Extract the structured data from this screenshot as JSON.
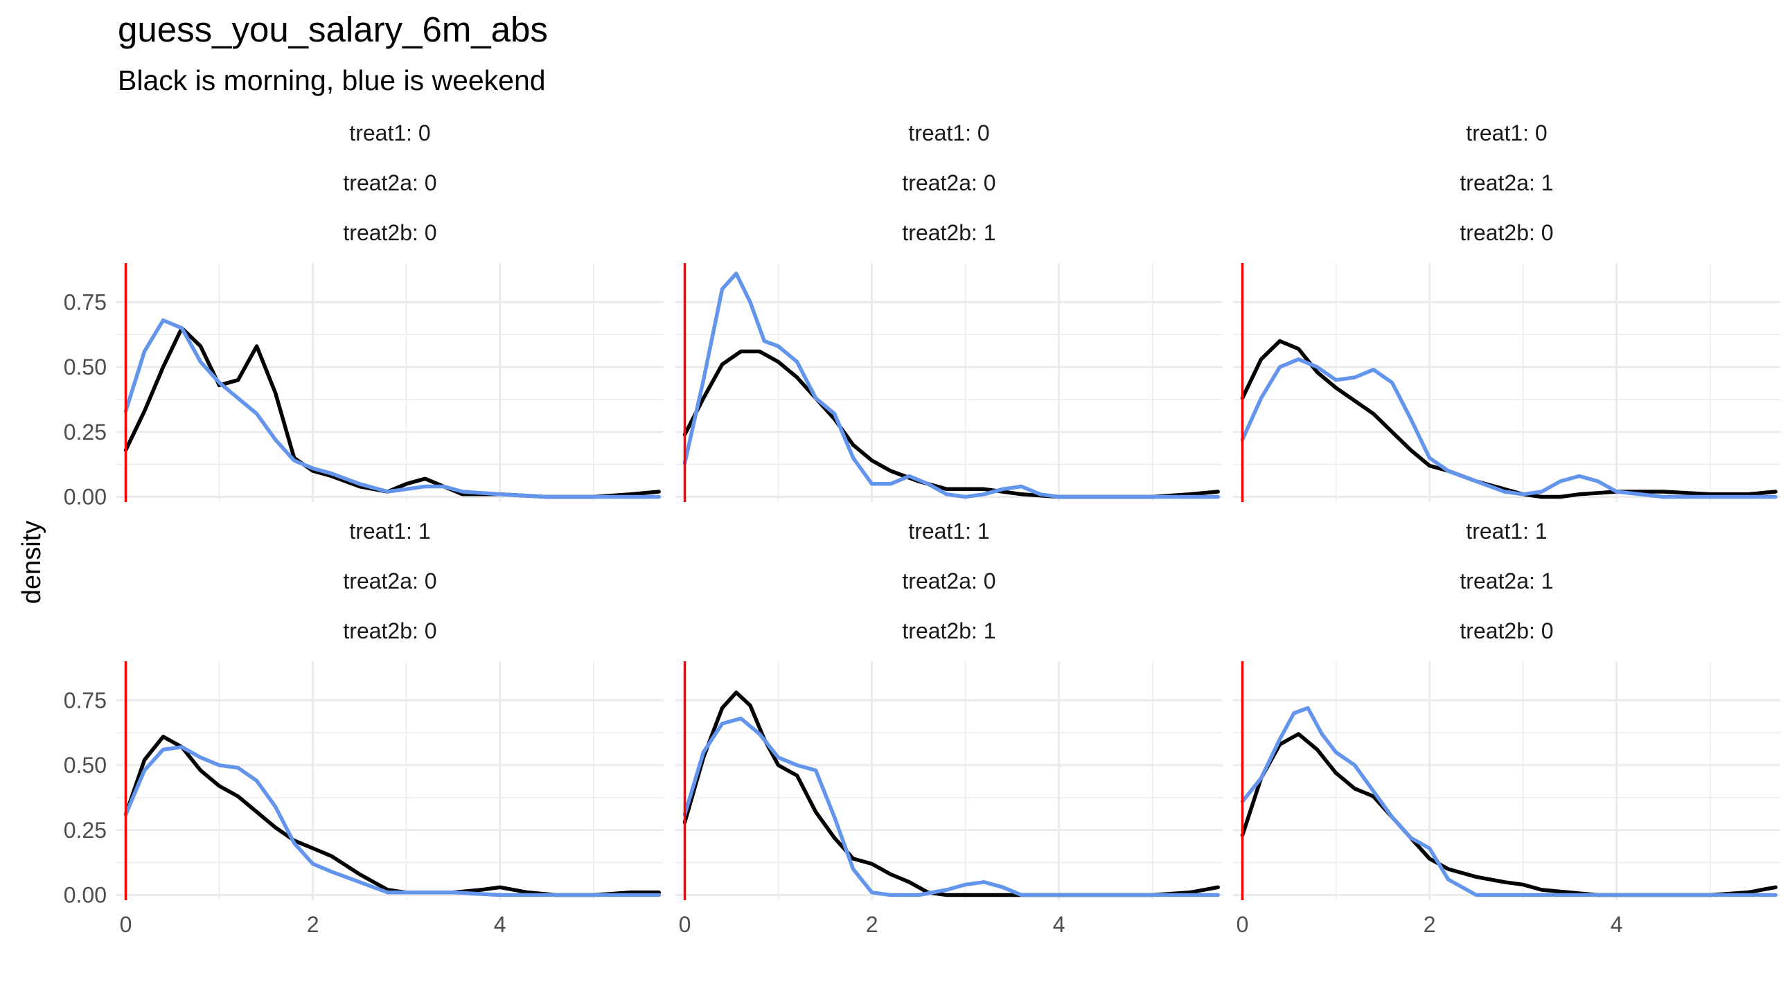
{
  "chart_data": {
    "type": "line",
    "chart_kind": "density",
    "title": "guess_you_salary_6m_abs",
    "subtitle": "Black is morning, blue is weekend",
    "xlabel": "",
    "ylabel": "density",
    "xlim": [
      -0.1,
      5.75
    ],
    "ylim": [
      -0.02,
      0.9
    ],
    "x_ticks": [
      0,
      2,
      4
    ],
    "y_ticks": [
      0.0,
      0.25,
      0.5,
      0.75
    ],
    "y_tick_labels": [
      "0.00",
      "0.25",
      "0.50",
      "0.75"
    ],
    "grid": true,
    "reference_line": {
      "x": 0,
      "color": "#ff0000"
    },
    "colors": {
      "morning": "#000000",
      "weekend": "#6495ed",
      "grid": "#ebebeb"
    },
    "panels": [
      {
        "strip": [
          "treat1: 0",
          "treat2a: 0",
          "treat2b: 0"
        ],
        "series": [
          {
            "color": "#000000",
            "x": [
              0,
              0.2,
              0.4,
              0.6,
              0.8,
              1.0,
              1.2,
              1.4,
              1.6,
              1.8,
              2.0,
              2.2,
              2.5,
              2.8,
              3.0,
              3.2,
              3.4,
              3.6,
              4.0,
              4.5,
              5.0,
              5.4,
              5.7
            ],
            "y": [
              0.18,
              0.33,
              0.5,
              0.65,
              0.58,
              0.43,
              0.45,
              0.58,
              0.4,
              0.15,
              0.1,
              0.08,
              0.04,
              0.02,
              0.05,
              0.07,
              0.04,
              0.01,
              0.01,
              0.0,
              0.0,
              0.01,
              0.02
            ]
          },
          {
            "color": "#6495ed",
            "x": [
              0,
              0.2,
              0.4,
              0.6,
              0.8,
              1.0,
              1.2,
              1.4,
              1.6,
              1.8,
              2.0,
              2.2,
              2.5,
              2.8,
              3.0,
              3.2,
              3.4,
              3.6,
              4.0,
              4.5,
              5.0,
              5.4,
              5.7
            ],
            "y": [
              0.33,
              0.56,
              0.68,
              0.65,
              0.52,
              0.44,
              0.38,
              0.32,
              0.22,
              0.14,
              0.11,
              0.09,
              0.05,
              0.02,
              0.03,
              0.04,
              0.04,
              0.02,
              0.01,
              0.0,
              0.0,
              0.0,
              0.0
            ]
          }
        ]
      },
      {
        "strip": [
          "treat1: 0",
          "treat2a: 0",
          "treat2b: 1"
        ],
        "series": [
          {
            "color": "#000000",
            "x": [
              0,
              0.2,
              0.4,
              0.6,
              0.8,
              1.0,
              1.2,
              1.4,
              1.6,
              1.8,
              2.0,
              2.2,
              2.5,
              2.8,
              3.0,
              3.2,
              3.4,
              3.6,
              4.0,
              4.5,
              5.0,
              5.4,
              5.7
            ],
            "y": [
              0.24,
              0.38,
              0.51,
              0.56,
              0.56,
              0.52,
              0.46,
              0.38,
              0.3,
              0.2,
              0.14,
              0.1,
              0.06,
              0.03,
              0.03,
              0.03,
              0.02,
              0.01,
              0.0,
              0.0,
              0.0,
              0.01,
              0.02
            ]
          },
          {
            "color": "#6495ed",
            "x": [
              0,
              0.2,
              0.4,
              0.55,
              0.7,
              0.85,
              1.0,
              1.2,
              1.4,
              1.6,
              1.8,
              2.0,
              2.2,
              2.4,
              2.6,
              2.8,
              3.0,
              3.2,
              3.4,
              3.6,
              3.8,
              4.0,
              4.5,
              5.0,
              5.7
            ],
            "y": [
              0.13,
              0.45,
              0.8,
              0.86,
              0.75,
              0.6,
              0.58,
              0.52,
              0.38,
              0.32,
              0.15,
              0.05,
              0.05,
              0.08,
              0.05,
              0.01,
              0.0,
              0.01,
              0.03,
              0.04,
              0.01,
              0.0,
              0.0,
              0.0,
              0.0
            ]
          }
        ]
      },
      {
        "strip": [
          "treat1: 0",
          "treat2a: 1",
          "treat2b: 0"
        ],
        "series": [
          {
            "color": "#000000",
            "x": [
              0,
              0.2,
              0.4,
              0.6,
              0.8,
              1.0,
              1.2,
              1.4,
              1.6,
              1.8,
              2.0,
              2.2,
              2.5,
              2.8,
              3.0,
              3.2,
              3.4,
              3.6,
              4.0,
              4.5,
              5.0,
              5.4,
              5.7
            ],
            "y": [
              0.38,
              0.53,
              0.6,
              0.57,
              0.48,
              0.42,
              0.37,
              0.32,
              0.25,
              0.18,
              0.12,
              0.1,
              0.06,
              0.03,
              0.01,
              0.0,
              0.0,
              0.01,
              0.02,
              0.02,
              0.01,
              0.01,
              0.02
            ]
          },
          {
            "color": "#6495ed",
            "x": [
              0,
              0.2,
              0.4,
              0.6,
              0.8,
              1.0,
              1.2,
              1.4,
              1.6,
              1.8,
              2.0,
              2.2,
              2.5,
              2.8,
              3.0,
              3.2,
              3.4,
              3.6,
              3.8,
              4.0,
              4.5,
              5.0,
              5.7
            ],
            "y": [
              0.22,
              0.38,
              0.5,
              0.53,
              0.5,
              0.45,
              0.46,
              0.49,
              0.44,
              0.3,
              0.15,
              0.1,
              0.06,
              0.02,
              0.01,
              0.02,
              0.06,
              0.08,
              0.06,
              0.02,
              0.0,
              0.0,
              0.0
            ]
          }
        ]
      },
      {
        "strip": [
          "treat1: 1",
          "treat2a: 0",
          "treat2b: 0"
        ],
        "series": [
          {
            "color": "#000000",
            "x": [
              0,
              0.2,
              0.4,
              0.6,
              0.8,
              1.0,
              1.2,
              1.4,
              1.6,
              1.8,
              2.0,
              2.2,
              2.5,
              2.8,
              3.0,
              3.2,
              3.5,
              3.8,
              4.0,
              4.3,
              4.6,
              5.0,
              5.4,
              5.7
            ],
            "y": [
              0.31,
              0.52,
              0.61,
              0.57,
              0.48,
              0.42,
              0.38,
              0.32,
              0.26,
              0.21,
              0.18,
              0.15,
              0.08,
              0.02,
              0.01,
              0.01,
              0.01,
              0.02,
              0.03,
              0.01,
              0.0,
              0.0,
              0.01,
              0.01
            ]
          },
          {
            "color": "#6495ed",
            "x": [
              0,
              0.2,
              0.4,
              0.6,
              0.8,
              1.0,
              1.2,
              1.4,
              1.6,
              1.8,
              2.0,
              2.2,
              2.5,
              2.8,
              3.0,
              3.2,
              3.5,
              4.0,
              4.5,
              5.0,
              5.7
            ],
            "y": [
              0.31,
              0.48,
              0.56,
              0.57,
              0.53,
              0.5,
              0.49,
              0.44,
              0.34,
              0.2,
              0.12,
              0.09,
              0.05,
              0.01,
              0.01,
              0.01,
              0.01,
              0.0,
              0.0,
              0.0,
              0.0
            ]
          }
        ]
      },
      {
        "strip": [
          "treat1: 1",
          "treat2a: 0",
          "treat2b: 1"
        ],
        "series": [
          {
            "color": "#000000",
            "x": [
              0,
              0.2,
              0.4,
              0.55,
              0.7,
              0.85,
              1.0,
              1.2,
              1.4,
              1.6,
              1.8,
              2.0,
              2.2,
              2.4,
              2.6,
              2.8,
              3.0,
              3.5,
              4.0,
              4.5,
              5.0,
              5.4,
              5.7
            ],
            "y": [
              0.28,
              0.53,
              0.72,
              0.78,
              0.73,
              0.6,
              0.5,
              0.46,
              0.32,
              0.22,
              0.14,
              0.12,
              0.08,
              0.05,
              0.01,
              0.0,
              0.0,
              0.0,
              0.0,
              0.0,
              0.0,
              0.01,
              0.03
            ]
          },
          {
            "color": "#6495ed",
            "x": [
              0,
              0.2,
              0.4,
              0.6,
              0.8,
              1.0,
              1.2,
              1.4,
              1.6,
              1.8,
              2.0,
              2.2,
              2.5,
              2.8,
              3.0,
              3.2,
              3.4,
              3.6,
              4.0,
              4.5,
              5.0,
              5.7
            ],
            "y": [
              0.31,
              0.55,
              0.66,
              0.68,
              0.62,
              0.53,
              0.5,
              0.48,
              0.3,
              0.1,
              0.01,
              0.0,
              0.0,
              0.02,
              0.04,
              0.05,
              0.03,
              0.0,
              0.0,
              0.0,
              0.0,
              0.0
            ]
          }
        ]
      },
      {
        "strip": [
          "treat1: 1",
          "treat2a: 1",
          "treat2b: 0"
        ],
        "series": [
          {
            "color": "#000000",
            "x": [
              0,
              0.2,
              0.4,
              0.6,
              0.8,
              1.0,
              1.2,
              1.4,
              1.6,
              1.8,
              2.0,
              2.2,
              2.5,
              2.8,
              3.0,
              3.2,
              3.5,
              3.8,
              4.0,
              4.5,
              5.0,
              5.4,
              5.7
            ],
            "y": [
              0.23,
              0.45,
              0.58,
              0.62,
              0.56,
              0.47,
              0.41,
              0.38,
              0.3,
              0.22,
              0.14,
              0.1,
              0.07,
              0.05,
              0.04,
              0.02,
              0.01,
              0.0,
              0.0,
              0.0,
              0.0,
              0.01,
              0.03
            ]
          },
          {
            "color": "#6495ed",
            "x": [
              0,
              0.2,
              0.4,
              0.55,
              0.7,
              0.85,
              1.0,
              1.2,
              1.4,
              1.6,
              1.8,
              2.0,
              2.2,
              2.5,
              2.8,
              3.0,
              3.5,
              4.0,
              4.5,
              5.0,
              5.7
            ],
            "y": [
              0.36,
              0.45,
              0.6,
              0.7,
              0.72,
              0.62,
              0.55,
              0.5,
              0.4,
              0.3,
              0.22,
              0.18,
              0.06,
              0.0,
              0.0,
              0.0,
              0.0,
              0.0,
              0.0,
              0.0,
              0.0
            ]
          }
        ]
      }
    ]
  }
}
